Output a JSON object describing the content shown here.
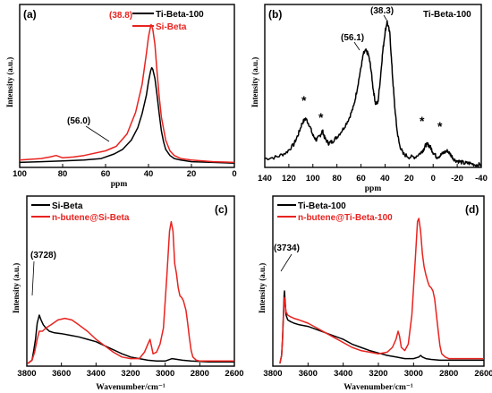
{
  "chart_data": [
    {
      "type": "line",
      "panel_label": "(a)",
      "xlabel": "ppm",
      "ylabel": "Intensity (a.u.)",
      "xlim": [
        100,
        0
      ],
      "ylim": [
        0,
        1
      ],
      "xticks": [
        "100",
        "80",
        "60",
        "40",
        "20",
        "0"
      ],
      "series": [
        {
          "name": "Ti-Beta-100",
          "color": "#000000",
          "x": [
            100,
            90,
            80,
            70,
            62,
            56,
            52,
            48,
            45,
            43,
            41,
            40,
            39,
            38.5,
            38,
            37,
            36,
            35,
            34,
            33,
            32,
            30,
            28,
            25,
            20,
            10,
            0
          ],
          "y": [
            0.015,
            0.02,
            0.025,
            0.03,
            0.04,
            0.07,
            0.1,
            0.16,
            0.24,
            0.33,
            0.45,
            0.54,
            0.61,
            0.63,
            0.62,
            0.56,
            0.45,
            0.33,
            0.22,
            0.15,
            0.1,
            0.06,
            0.04,
            0.03,
            0.02,
            0.015,
            0.01
          ]
        },
        {
          "name": "Si-Beta",
          "color": "#e8231f",
          "x": [
            100,
            90,
            86,
            83,
            80,
            75,
            70,
            60,
            55,
            50,
            46,
            43,
            41,
            40,
            39,
            38.8,
            38,
            37,
            36,
            35,
            34,
            32,
            30,
            28,
            25,
            20,
            10,
            0
          ],
          "y": [
            0.03,
            0.04,
            0.05,
            0.06,
            0.045,
            0.05,
            0.06,
            0.09,
            0.12,
            0.2,
            0.34,
            0.52,
            0.72,
            0.83,
            0.9,
            0.91,
            0.88,
            0.78,
            0.6,
            0.44,
            0.31,
            0.16,
            0.09,
            0.06,
            0.04,
            0.03,
            0.02,
            0.015
          ]
        }
      ],
      "annotations": [
        {
          "text": "(38.8)",
          "color": "#e8231f"
        },
        {
          "text": "(56.0)",
          "color": "#000000"
        }
      ]
    },
    {
      "type": "line",
      "panel_label": "(b)",
      "title": "Ti-Beta-100",
      "xlabel": "ppm",
      "ylabel": "Intensity (a.u.)",
      "xlim": [
        140,
        -40
      ],
      "ylim": [
        0,
        1
      ],
      "xticks": [
        "140",
        "120",
        "100",
        "80",
        "60",
        "40",
        "20",
        "0",
        "-20",
        "-40"
      ],
      "series": [
        {
          "name": "Ti-Beta-100",
          "color": "#000000",
          "x": [
            140,
            130,
            122,
            116,
            112,
            109,
            106,
            103,
            100,
            97,
            94,
            92,
            90,
            87,
            84,
            80,
            75,
            70,
            66,
            63,
            60,
            58,
            56.1,
            54,
            52,
            50,
            48,
            46,
            44,
            42,
            40,
            38.3,
            36,
            34,
            32,
            30,
            28,
            25,
            20,
            15,
            10,
            8,
            6,
            4,
            2,
            0,
            -3,
            -6,
            -9,
            -12,
            -15,
            -18,
            -22,
            -26,
            -30,
            -35,
            -40
          ],
          "y": [
            0.04,
            0.05,
            0.08,
            0.13,
            0.2,
            0.27,
            0.3,
            0.26,
            0.19,
            0.16,
            0.19,
            0.22,
            0.17,
            0.14,
            0.15,
            0.18,
            0.23,
            0.3,
            0.38,
            0.5,
            0.63,
            0.72,
            0.74,
            0.72,
            0.64,
            0.5,
            0.4,
            0.4,
            0.55,
            0.73,
            0.86,
            0.93,
            0.85,
            0.6,
            0.38,
            0.22,
            0.13,
            0.07,
            0.05,
            0.05,
            0.08,
            0.1,
            0.13,
            0.13,
            0.11,
            0.08,
            0.05,
            0.06,
            0.08,
            0.09,
            0.06,
            0.03,
            0.02,
            0.01,
            0.01,
            0.0,
            0.0
          ]
        }
      ],
      "annotations": [
        {
          "text": "(56.1)"
        },
        {
          "text": "(38.3)"
        },
        {
          "text": "*"
        }
      ]
    },
    {
      "type": "line",
      "panel_label": "(c)",
      "xlabel": "Wavenumber/cm⁻¹",
      "ylabel": "Intensity (a.u.)",
      "xlim": [
        3800,
        2600
      ],
      "ylim": [
        0,
        1
      ],
      "xticks": [
        "3800",
        "3600",
        "3400",
        "3200",
        "3000",
        "2800",
        "2600"
      ],
      "series": [
        {
          "name": "Si-Beta",
          "color": "#000000",
          "x": [
            3795,
            3770,
            3760,
            3750,
            3740,
            3728,
            3718,
            3705,
            3690,
            3670,
            3640,
            3600,
            3550,
            3500,
            3450,
            3400,
            3350,
            3300,
            3250,
            3200,
            3150,
            3100,
            3050,
            3000,
            2960,
            2930,
            2900,
            2850,
            2800,
            2750,
            2700,
            2650,
            2600
          ],
          "y": [
            0.0,
            0.02,
            0.08,
            0.15,
            0.25,
            0.3,
            0.27,
            0.24,
            0.22,
            0.2,
            0.19,
            0.185,
            0.175,
            0.165,
            0.15,
            0.135,
            0.11,
            0.085,
            0.06,
            0.04,
            0.03,
            0.02,
            0.015,
            0.015,
            0.03,
            0.025,
            0.02,
            0.015,
            0.012,
            0.01,
            0.01,
            0.01,
            0.01
          ]
        },
        {
          "name": "n-butene@Si-Beta",
          "color": "#e8231f",
          "x": [
            3795,
            3770,
            3755,
            3740,
            3728,
            3710,
            3690,
            3660,
            3620,
            3580,
            3540,
            3500,
            3450,
            3400,
            3350,
            3300,
            3250,
            3200,
            3150,
            3120,
            3100,
            3088,
            3080,
            3070,
            3050,
            3030,
            3010,
            2990,
            2975,
            2965,
            2955,
            2945,
            2935,
            2925,
            2915,
            2905,
            2895,
            2880,
            2870,
            2860,
            2850,
            2840,
            2820,
            2800,
            2750,
            2700,
            2650,
            2600
          ],
          "y": [
            0.0,
            0.02,
            0.07,
            0.15,
            0.2,
            0.2,
            0.22,
            0.24,
            0.27,
            0.28,
            0.27,
            0.24,
            0.2,
            0.15,
            0.11,
            0.07,
            0.04,
            0.03,
            0.03,
            0.07,
            0.12,
            0.15,
            0.11,
            0.06,
            0.07,
            0.12,
            0.22,
            0.55,
            0.82,
            0.88,
            0.82,
            0.62,
            0.56,
            0.47,
            0.42,
            0.41,
            0.39,
            0.33,
            0.25,
            0.16,
            0.08,
            0.04,
            0.02,
            0.015,
            0.015,
            0.015,
            0.015,
            0.015
          ]
        }
      ],
      "annotations": [
        {
          "text": "(3728)"
        }
      ]
    },
    {
      "type": "line",
      "panel_label": "(d)",
      "xlabel": "Wavenumber/cm⁻¹",
      "ylabel": "Intensity (a.u.)",
      "xlim": [
        3800,
        2600
      ],
      "ylim": [
        0,
        1
      ],
      "xticks": [
        "3800",
        "3600",
        "3400",
        "3200",
        "3000",
        "2800",
        "2600"
      ],
      "series": [
        {
          "name": "Ti-Beta-100",
          "color": "#000000",
          "x": [
            3760,
            3750,
            3745,
            3740,
            3736,
            3734,
            3730,
            3725,
            3715,
            3700,
            3680,
            3650,
            3600,
            3550,
            3500,
            3450,
            3400,
            3350,
            3300,
            3250,
            3200,
            3150,
            3100,
            3050,
            3000,
            2970,
            2960,
            2950,
            2930,
            2900,
            2850,
            2800,
            2750,
            2700,
            2650,
            2600
          ],
          "y": [
            0.0,
            0.05,
            0.15,
            0.3,
            0.42,
            0.45,
            0.38,
            0.3,
            0.27,
            0.26,
            0.25,
            0.24,
            0.23,
            0.21,
            0.19,
            0.17,
            0.15,
            0.12,
            0.1,
            0.08,
            0.065,
            0.05,
            0.04,
            0.03,
            0.03,
            0.04,
            0.05,
            0.04,
            0.03,
            0.025,
            0.02,
            0.02,
            0.02,
            0.02,
            0.02,
            0.02
          ]
        },
        {
          "name": "n-butene@Ti-Beta-100",
          "color": "#e8231f",
          "x": [
            3760,
            3750,
            3745,
            3740,
            3736,
            3734,
            3730,
            3725,
            3715,
            3700,
            3680,
            3650,
            3600,
            3550,
            3500,
            3450,
            3400,
            3350,
            3300,
            3250,
            3200,
            3150,
            3120,
            3100,
            3088,
            3080,
            3070,
            3050,
            3030,
            3010,
            2990,
            2978,
            2970,
            2960,
            2950,
            2940,
            2930,
            2920,
            2910,
            2900,
            2890,
            2880,
            2870,
            2860,
            2850,
            2840,
            2820,
            2800,
            2750,
            2700,
            2650,
            2600
          ],
          "y": [
            0.0,
            0.05,
            0.14,
            0.28,
            0.38,
            0.41,
            0.36,
            0.32,
            0.3,
            0.29,
            0.28,
            0.27,
            0.25,
            0.22,
            0.19,
            0.16,
            0.13,
            0.1,
            0.08,
            0.07,
            0.06,
            0.07,
            0.1,
            0.15,
            0.2,
            0.17,
            0.1,
            0.08,
            0.12,
            0.3,
            0.65,
            0.88,
            0.9,
            0.82,
            0.68,
            0.6,
            0.55,
            0.51,
            0.48,
            0.47,
            0.45,
            0.4,
            0.3,
            0.2,
            0.11,
            0.06,
            0.04,
            0.03,
            0.03,
            0.03,
            0.03,
            0.03
          ]
        }
      ],
      "annotations": [
        {
          "text": "(3734)"
        }
      ]
    }
  ]
}
